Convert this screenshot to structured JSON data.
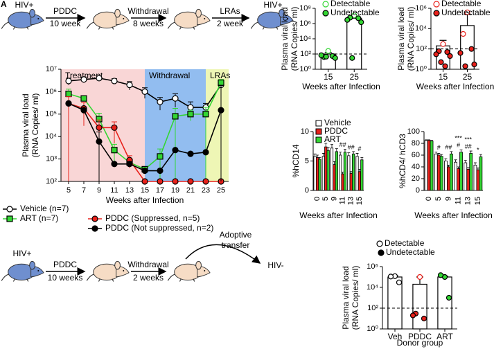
{
  "panel_label": "A",
  "schematic_top": {
    "start": "HIV+",
    "end": "HIV+",
    "steps": [
      {
        "label": "PDDC",
        "duration": "10 week"
      },
      {
        "label": "Withdrawal",
        "duration": "8 weeks"
      },
      {
        "label": "LRAs",
        "duration": "2 week"
      }
    ]
  },
  "schematic_bottom": {
    "start": "HIV+",
    "end": "HIV-",
    "transfer": [
      "Adoptive",
      "transfer"
    ],
    "steps": [
      {
        "label": "PDDC",
        "duration": "10 weeks"
      },
      {
        "label": "Withdrawal",
        "duration": "2 weeks"
      }
    ]
  },
  "chart_data": [
    {
      "type": "bar_dot",
      "ylabel": [
        "Plasma viral load",
        "(RNA Copies/ ml)"
      ],
      "xlabel": "Weeks after Infection",
      "categories": [
        "15",
        "25"
      ],
      "values": [
        100,
        5000000
      ],
      "errors": [
        60,
        2000000
      ],
      "bar_color": "#ffffff",
      "ylog": true,
      "ylim": [
        1,
        100000000
      ],
      "yticks": [
        {
          "value": 1,
          "label": "10⁰"
        },
        {
          "value": 100,
          "label": "10²"
        },
        {
          "value": 10000,
          "label": "10⁴"
        },
        {
          "value": 1000000,
          "label": "10⁶"
        },
        {
          "value": 100000000,
          "label": "10⁸"
        }
      ],
      "detection_limit": 100,
      "series": [
        {
          "name": "Detectable",
          "color": "#33d633",
          "filled": false,
          "x": [
            "15",
            "25"
          ],
          "values": [
            250,
            12000000
          ]
        },
        {
          "name": "Undetectable",
          "color": "#33d633",
          "filled": true,
          "x": [
            "15",
            "15",
            "15",
            "15",
            "15",
            "25",
            "25",
            "25",
            "25",
            "25"
          ],
          "values": [
            40,
            55,
            70,
            30,
            45,
            6000000,
            5000000,
            3000000,
            1500000,
            30
          ]
        }
      ]
    },
    {
      "type": "bar_dot",
      "ylabel": [
        "Plasma viral load",
        "(RNA Copies/ ml)"
      ],
      "xlabel": "Weeks after Infection",
      "categories": [
        "15",
        "25"
      ],
      "values": [
        200,
        20000
      ],
      "errors": [
        500,
        250000
      ],
      "bar_color": "#ffffff",
      "ylog": true,
      "ylim": [
        1,
        1000000
      ],
      "yticks": [
        {
          "value": 1,
          "label": "10⁰"
        },
        {
          "value": 100,
          "label": "10²"
        },
        {
          "value": 10000,
          "label": "10⁴"
        },
        {
          "value": 1000000,
          "label": "10⁶"
        }
      ],
      "detection_limit": 100,
      "series": [
        {
          "name": "Detectable",
          "color": "#e8211b",
          "filled": false,
          "x": [
            "15",
            "25",
            "25"
          ],
          "values": [
            300,
            400000,
            3000
          ]
        },
        {
          "name": "Undetectable",
          "color": "#e8211b",
          "filled": true,
          "x": [
            "15",
            "15",
            "15",
            "15",
            "15",
            "15",
            "25",
            "25",
            "25",
            "25"
          ],
          "values": [
            60,
            50,
            30,
            20,
            5,
            2,
            100,
            40,
            3,
            2
          ]
        }
      ]
    },
    {
      "type": "line",
      "ylabel": [
        "Plasma viral load",
        "(RNA Copies/ ml)"
      ],
      "xlabel": "Weeks after Infection",
      "x": [
        5,
        7,
        9,
        11,
        13,
        15,
        17,
        19,
        21,
        23,
        25
      ],
      "xlim": [
        4,
        26
      ],
      "xticks": [
        5,
        7,
        9,
        11,
        13,
        15,
        17,
        19,
        21,
        23,
        25
      ],
      "ylog": true,
      "ylim": [
        100,
        10000000
      ],
      "yticks": [
        {
          "value": 100,
          "label": "10²"
        },
        {
          "value": 1000,
          "label": "10³"
        },
        {
          "value": 10000,
          "label": "10⁴"
        },
        {
          "value": 100000,
          "label": "10⁵"
        },
        {
          "value": 1000000,
          "label": "10⁶"
        },
        {
          "value": 10000000,
          "label": "10⁷"
        }
      ],
      "regions": [
        {
          "label": "Treatment",
          "start": 4,
          "end": 15,
          "color": "#f9d6d6"
        },
        {
          "label": "Withdrawal",
          "start": 15,
          "end": 23,
          "color": "#92bdf0"
        },
        {
          "label": "LRAs",
          "start": 23,
          "end": 26,
          "color": "#eef6b5"
        }
      ],
      "series": [
        {
          "name": "Vehicle (n=7)",
          "color": "#000000",
          "marker": "circle",
          "filled": false,
          "values": [
            3000000,
            3500000,
            4000000,
            3000000,
            2000000,
            1000000,
            350000,
            500000,
            200000,
            200000,
            2000000
          ],
          "errors": [
            1000000,
            1000000,
            500000,
            800000,
            800000,
            500000,
            200000,
            300000,
            150000,
            100000,
            500000
          ]
        },
        {
          "name": "ART (n=7)",
          "color": "#33d633",
          "marker": "square",
          "filled": true,
          "values": [
            800000,
            500000,
            60000,
            2500,
            700,
            350,
            1300,
            80000,
            100000,
            100000,
            2500000
          ],
          "errors": [
            500000,
            null,
            50000,
            2000,
            300,
            null,
            1500,
            100000,
            50000,
            100000,
            1000000
          ]
        },
        {
          "name": "PDDC (Suppressed, n=5)",
          "color": "#e8211b",
          "marker": "circle",
          "filled": true,
          "values": [
            300000,
            180000,
            25000,
            25000,
            900,
            100,
            100,
            100,
            100,
            100,
            100
          ],
          "errors": [
            300000,
            150000,
            30000,
            20000,
            500,
            null,
            null,
            null,
            null,
            null,
            null
          ]
        },
        {
          "name": "PDDC (Not suppressed, n=2)",
          "color": "#000000",
          "marker": "circle",
          "filled": true,
          "values": [
            300000,
            150000,
            6000,
            600,
            600,
            300,
            300,
            2500,
            1700,
            2000,
            150000
          ],
          "errors": [
            null,
            null,
            10000,
            null,
            null,
            null,
            null,
            null,
            null,
            null,
            1800000
          ]
        }
      ],
      "legend": "below"
    },
    {
      "type": "grouped_bar",
      "ylabel": "%hCD14",
      "xlabel": "Weeks after Infection",
      "categories": [
        "0",
        "5",
        "9",
        "11",
        "13",
        "15"
      ],
      "ylim": [
        0,
        10
      ],
      "yticks": [
        0,
        5,
        10
      ],
      "series": [
        {
          "name": "Vehicle",
          "color": "#ffffff",
          "values": [
            5.8,
            5.8,
            7.2,
            6.0,
            5.9,
            5.8
          ],
          "errors": [
            0.4,
            0.5,
            0.6,
            0.5,
            0.5,
            0.5
          ]
        },
        {
          "name": "PDDC",
          "color": "#e8211b",
          "values": [
            5.6,
            7.4,
            4.4,
            2.8,
            2.9,
            3.2
          ],
          "errors": [
            0.4,
            0.6,
            0.5,
            0.3,
            0.3,
            0.4
          ]
        },
        {
          "name": "ART",
          "color": "#33d633",
          "values": [
            5.3,
            6.8,
            6.6,
            6.5,
            6.2,
            5.2
          ],
          "errors": [
            0.3,
            0.5,
            0.5,
            0.5,
            0.4,
            0.4
          ]
        }
      ],
      "annotations": [
        {
          "category": "11",
          "text": "##"
        },
        {
          "category": "13",
          "text": "##"
        },
        {
          "category": "15",
          "text": "#"
        }
      ]
    },
    {
      "type": "grouped_bar",
      "ylabel": "%hCD4/ hCD3",
      "xlabel": "Weeks after Infection",
      "categories": [
        "0",
        "5",
        "9",
        "11",
        "13",
        "15"
      ],
      "ylim": [
        0,
        100
      ],
      "yticks": [
        0,
        20,
        40,
        60,
        80,
        100
      ],
      "series": [
        {
          "name": "Vehicle",
          "color": "#ffffff",
          "values": [
            85,
            62,
            50,
            48,
            47,
            43
          ],
          "errors": [
            1,
            3,
            4,
            4,
            4,
            4
          ]
        },
        {
          "name": "PDDC",
          "color": "#e8211b",
          "values": [
            85,
            60,
            40,
            37,
            36,
            35
          ],
          "errors": [
            1,
            3,
            3,
            3,
            3,
            3
          ]
        },
        {
          "name": "ART",
          "color": "#33d633",
          "values": [
            84,
            58,
            62,
            65,
            63,
            57
          ],
          "errors": [
            1,
            3,
            4,
            4,
            4,
            4
          ]
        }
      ],
      "annotations": [
        {
          "category": "5",
          "text": "#"
        },
        {
          "category": "9",
          "text": "##"
        },
        {
          "category": "11",
          "text": "#"
        },
        {
          "category": "11",
          "text": "***"
        },
        {
          "category": "13",
          "text": "##"
        },
        {
          "category": "13",
          "text": "***"
        },
        {
          "category": "15",
          "text": "*"
        }
      ]
    },
    {
      "type": "bar_dot",
      "ylabel": [
        "Plasma viral load",
        "(RNA Copies/ ml)"
      ],
      "xlabel": "Donor group",
      "categories": [
        "Veh",
        "PDDC",
        "ART"
      ],
      "values": [
        100000,
        20000,
        100000
      ],
      "errors": [
        30000,
        80000,
        20000
      ],
      "bar_color": "#ffffff",
      "ylog": true,
      "ylim": [
        1,
        1000000
      ],
      "yticks": [
        {
          "value": 1,
          "label": "10⁰"
        },
        {
          "value": 100,
          "label": "10²"
        },
        {
          "value": 10000,
          "label": "10⁴"
        },
        {
          "value": 1000000,
          "label": "10⁶"
        }
      ],
      "detection_limit": 100,
      "series": [
        {
          "name": "Detectable",
          "color": "#000000",
          "filled": false,
          "x": [
            "Veh",
            "Veh",
            "Veh",
            "PDDC"
          ],
          "values": [
            120000,
            110000,
            30000,
            100000
          ]
        },
        {
          "name": "Undetectable",
          "color": "#000000",
          "filled": true,
          "x": [
            "PDDC",
            "PDDC",
            "PDDC",
            "ART",
            "ART",
            "ART"
          ],
          "values": [
            30,
            10,
            20,
            100000,
            150000,
            1000
          ]
        }
      ],
      "point_colors": {
        "Veh": "#000000",
        "PDDC": "#e8211b",
        "ART": "#33d633"
      }
    }
  ]
}
